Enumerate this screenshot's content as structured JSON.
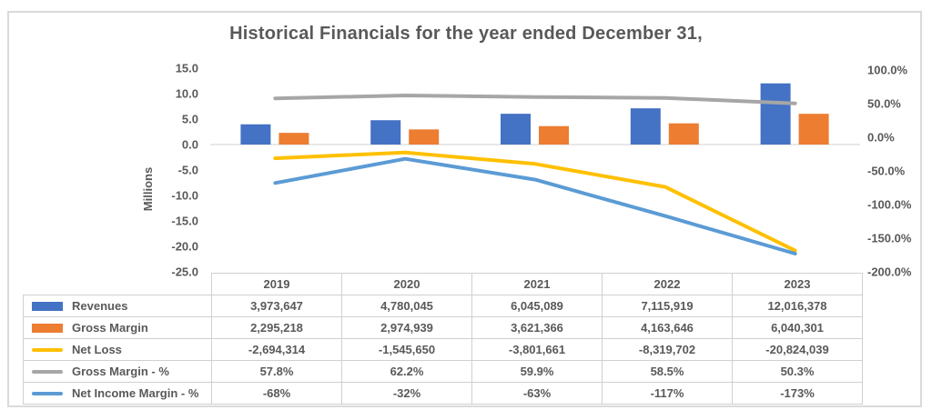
{
  "colors": {
    "frame_border": "#dadada",
    "grid_line": "#d9d9d9",
    "text": "#595959",
    "table_border": "#d2d0cf"
  },
  "chart_data": {
    "type": "bar",
    "subtype": "combo-clustered-bar-and-line-dual-axis",
    "title": "Historical Financials for the year ended December 31,",
    "categories": [
      "2019",
      "2020",
      "2021",
      "2022",
      "2023"
    ],
    "left_axis": {
      "label": "Millions",
      "min": -25,
      "max": 15,
      "tick_step": 5,
      "ticks": [
        "15.0",
        "10.0",
        "5.0",
        "0.0",
        "-5.0",
        "-10.0",
        "-15.0",
        "-20.0",
        "-25.0"
      ]
    },
    "right_axis": {
      "min": -200,
      "max": 100,
      "tick_step": 50,
      "ticks": [
        "100.0%",
        "50.0%",
        "0.0%",
        "-50.0%",
        "-100.0%",
        "-150.0%",
        "-200.0%"
      ]
    },
    "grid": "zero-line-only",
    "legend_position": "data-table-left-column",
    "series": [
      {
        "name": "Revenues",
        "kind": "bar",
        "axis": "left",
        "color": "#4472C4",
        "values": [
          3973647,
          4780045,
          6045089,
          7115919,
          12016378
        ],
        "display": [
          "3,973,647",
          "4,780,045",
          "6,045,089",
          "7,115,919",
          "12,016,378"
        ]
      },
      {
        "name": "Gross Margin",
        "kind": "bar",
        "axis": "left",
        "color": "#ED7D31",
        "values": [
          2295218,
          2974939,
          3621366,
          4163646,
          6040301
        ],
        "display": [
          "2,295,218",
          "2,974,939",
          "3,621,366",
          "4,163,646",
          "6,040,301"
        ]
      },
      {
        "name": "Net Loss",
        "kind": "line",
        "axis": "left",
        "color": "#FFC000",
        "values": [
          -2694314,
          -1545650,
          -3801661,
          -8319702,
          -20824039
        ],
        "display": [
          "-2,694,314",
          "-1,545,650",
          "-3,801,661",
          "-8,319,702",
          "-20,824,039"
        ]
      },
      {
        "name": "Gross Margin - %",
        "kind": "line",
        "axis": "right",
        "color": "#A6A6A6",
        "values": [
          57.8,
          62.2,
          59.9,
          58.5,
          50.3
        ],
        "display": [
          "57.8%",
          "62.2%",
          "59.9%",
          "58.5%",
          "50.3%"
        ]
      },
      {
        "name": "Net Income Margin - %",
        "kind": "line",
        "axis": "right",
        "color": "#5B9BD5",
        "values": [
          -68,
          -32,
          -63,
          -117,
          -173
        ],
        "display": [
          "-68%",
          "-32%",
          "-63%",
          "-117%",
          "-173%"
        ]
      }
    ]
  }
}
